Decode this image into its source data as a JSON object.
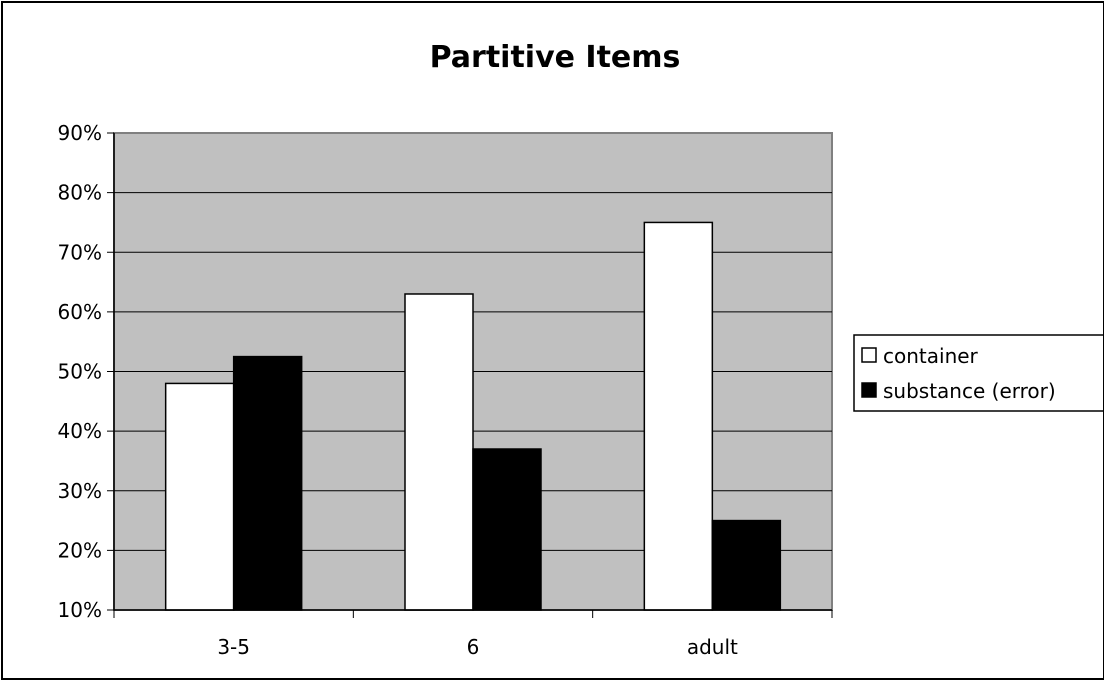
{
  "chart_data": {
    "type": "bar",
    "title": "Partitive Items",
    "categories": [
      "3-5",
      "6",
      "adult"
    ],
    "series": [
      {
        "name": "container",
        "color": "#ffffff",
        "values": [
          0.48,
          0.63,
          0.75
        ]
      },
      {
        "name": "substance (error)",
        "color": "#000000",
        "values": [
          0.525,
          0.37,
          0.25
        ]
      }
    ],
    "ylim": [
      0.1,
      0.9
    ],
    "yticks": [
      "10%",
      "20%",
      "30%",
      "40%",
      "50%",
      "60%",
      "70%",
      "80%",
      "90%"
    ],
    "ytick_values": [
      0.1,
      0.2,
      0.3,
      0.4,
      0.5,
      0.6,
      0.7,
      0.8,
      0.9
    ],
    "xlabel": "",
    "ylabel": "",
    "grid": true,
    "plot_background": "#c0c0c0",
    "legend_position": "right"
  }
}
